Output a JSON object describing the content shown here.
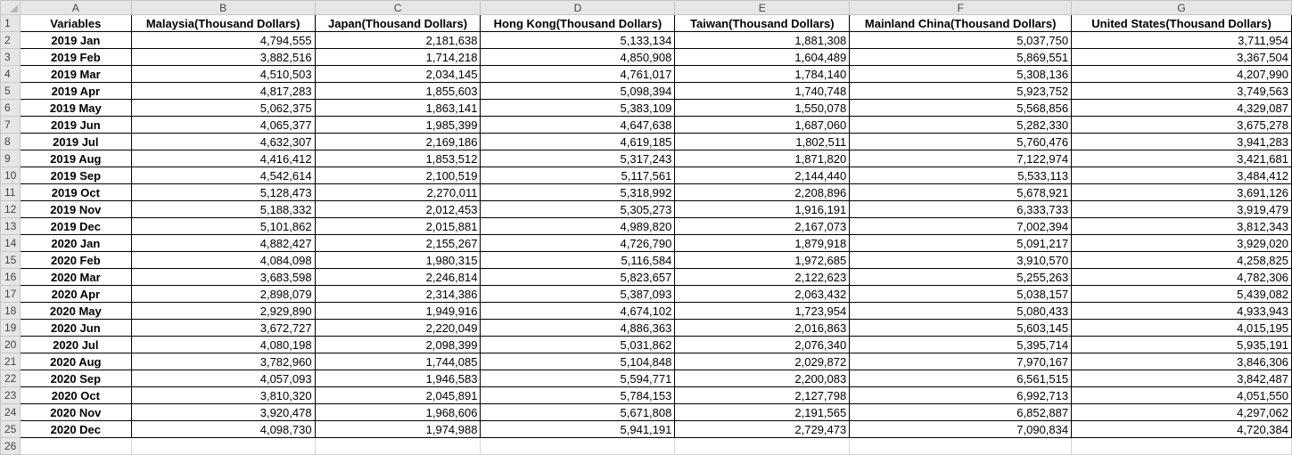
{
  "spreadsheet": {
    "column_letters": [
      "A",
      "B",
      "C",
      "D",
      "E",
      "F",
      "G"
    ],
    "headers": [
      "Variables",
      "Malaysia(Thousand Dollars)",
      "Japan(Thousand Dollars)",
      "Hong Kong(Thousand Dollars)",
      "Taiwan(Thousand Dollars)",
      "Mainland China(Thousand Dollars)",
      "United States(Thousand Dollars)"
    ],
    "rows": [
      [
        "2019 Jan",
        "4,794,555",
        "2,181,638",
        "5,133,134",
        "1,881,308",
        "5,037,750",
        "3,711,954"
      ],
      [
        "2019 Feb",
        "3,882,516",
        "1,714,218",
        "4,850,908",
        "1,604,489",
        "5,869,551",
        "3,367,504"
      ],
      [
        "2019 Mar",
        "4,510,503",
        "2,034,145",
        "4,761,017",
        "1,784,140",
        "5,308,136",
        "4,207,990"
      ],
      [
        "2019 Apr",
        "4,817,283",
        "1,855,603",
        "5,098,394",
        "1,740,748",
        "5,923,752",
        "3,749,563"
      ],
      [
        "2019 May",
        "5,062,375",
        "1,863,141",
        "5,383,109",
        "1,550,078",
        "5,568,856",
        "4,329,087"
      ],
      [
        "2019 Jun",
        "4,065,377",
        "1,985,399",
        "4,647,638",
        "1,687,060",
        "5,282,330",
        "3,675,278"
      ],
      [
        "2019 Jul",
        "4,632,307",
        "2,169,186",
        "4,619,185",
        "1,802,511",
        "5,760,476",
        "3,941,283"
      ],
      [
        "2019 Aug",
        "4,416,412",
        "1,853,512",
        "5,317,243",
        "1,871,820",
        "7,122,974",
        "3,421,681"
      ],
      [
        "2019 Sep",
        "4,542,614",
        "2,100,519",
        "5,117,561",
        "2,144,440",
        "5,533,113",
        "3,484,412"
      ],
      [
        "2019 Oct",
        "5,128,473",
        "2,270,011",
        "5,318,992",
        "2,208,896",
        "5,678,921",
        "3,691,126"
      ],
      [
        "2019 Nov",
        "5,188,332",
        "2,012,453",
        "5,305,273",
        "1,916,191",
        "6,333,733",
        "3,919,479"
      ],
      [
        "2019 Dec",
        "5,101,862",
        "2,015,881",
        "4,989,820",
        "2,167,073",
        "7,002,394",
        "3,812,343"
      ],
      [
        "2020 Jan",
        "4,882,427",
        "2,155,267",
        "4,726,790",
        "1,879,918",
        "5,091,217",
        "3,929,020"
      ],
      [
        "2020 Feb",
        "4,084,098",
        "1,980,315",
        "5,116,584",
        "1,972,685",
        "3,910,570",
        "4,258,825"
      ],
      [
        "2020 Mar",
        "3,683,598",
        "2,246,814",
        "5,823,657",
        "2,122,623",
        "5,255,263",
        "4,782,306"
      ],
      [
        "2020 Apr",
        "2,898,079",
        "2,314,386",
        "5,387,093",
        "2,063,432",
        "5,038,157",
        "5,439,082"
      ],
      [
        "2020 May",
        "2,929,890",
        "1,949,916",
        "4,674,102",
        "1,723,954",
        "5,080,433",
        "4,933,943"
      ],
      [
        "2020 Jun",
        "3,672,727",
        "2,220,049",
        "4,886,363",
        "2,016,863",
        "5,603,145",
        "4,015,195"
      ],
      [
        "2020 Jul",
        "4,080,198",
        "2,098,399",
        "5,031,862",
        "2,076,340",
        "5,395,714",
        "5,935,191"
      ],
      [
        "2020 Aug",
        "3,782,960",
        "1,744,085",
        "5,104,848",
        "2,029,872",
        "7,970,167",
        "3,846,306"
      ],
      [
        "2020 Sep",
        "4,057,093",
        "1,946,583",
        "5,594,771",
        "2,200,083",
        "6,561,515",
        "3,842,487"
      ],
      [
        "2020 Oct",
        "3,810,320",
        "2,045,891",
        "5,784,153",
        "2,127,798",
        "6,992,713",
        "4,051,550"
      ],
      [
        "2020 Nov",
        "3,920,478",
        "1,968,606",
        "5,671,808",
        "2,191,565",
        "6,852,887",
        "4,297,062"
      ],
      [
        "2020 Dec",
        "4,098,730",
        "1,974,988",
        "5,941,191",
        "2,729,473",
        "7,090,834",
        "4,720,384"
      ]
    ]
  }
}
